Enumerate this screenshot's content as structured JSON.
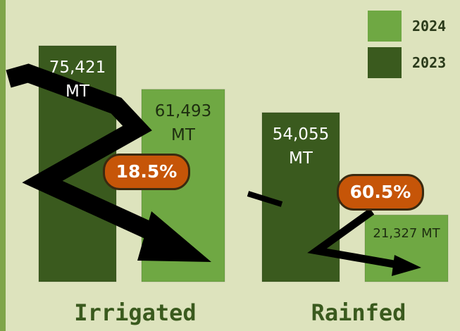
{
  "chart_data": {
    "type": "bar",
    "categories": [
      "Irrigated",
      "Rainfed"
    ],
    "series": [
      {
        "name": "2023",
        "color": "#3a5a1e",
        "values": [
          75421,
          54055
        ],
        "value_labels": [
          "75,421 MT",
          "54,055 MT"
        ]
      },
      {
        "name": "2024",
        "color": "#6fa843",
        "values": [
          61493,
          21327
        ],
        "value_labels": [
          "61,493 MT",
          "21,327 MT"
        ]
      }
    ],
    "annotations": [
      "18.5%",
      "60.5%"
    ]
  }
}
